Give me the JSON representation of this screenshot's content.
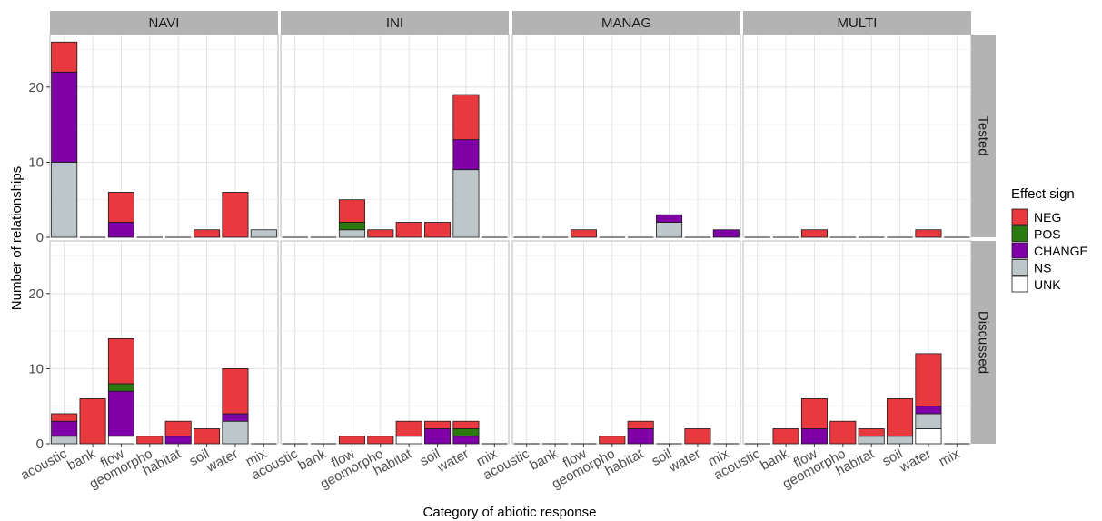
{
  "chart_data": {
    "type": "bar",
    "stacked": true,
    "facet_cols": [
      "NAVI",
      "INI",
      "MANAG",
      "MULTI"
    ],
    "facet_rows": [
      "Tested",
      "Discussed"
    ],
    "categories": [
      "acoustic",
      "bank",
      "flow",
      "geomorpho",
      "habitat",
      "soil",
      "water",
      "mix"
    ],
    "xlabel": "Category of abiotic response",
    "ylabel": "Number of relationships",
    "ylim": [
      0,
      27
    ],
    "yticks": [
      0,
      10,
      20
    ],
    "grid": true,
    "legend": {
      "title": "Effect sign",
      "position": "right",
      "items": [
        {
          "label": "NEG",
          "color": "#e8393e"
        },
        {
          "label": "POS",
          "color": "#2a7a10"
        },
        {
          "label": "CHANGE",
          "color": "#8000a8"
        },
        {
          "label": "NS",
          "color": "#bdc6c9"
        },
        {
          "label": "UNK",
          "color": "#ffffff"
        }
      ]
    },
    "stack_order": [
      "UNK",
      "NS",
      "CHANGE",
      "POS",
      "NEG"
    ],
    "panels": [
      {
        "row": "Tested",
        "col": "NAVI",
        "bars": [
          {
            "category": "acoustic",
            "NS": 10,
            "CHANGE": 12,
            "NEG": 4
          },
          {
            "category": "bank"
          },
          {
            "category": "flow",
            "CHANGE": 2,
            "NEG": 4
          },
          {
            "category": "geomorpho"
          },
          {
            "category": "habitat"
          },
          {
            "category": "soil",
            "NEG": 1
          },
          {
            "category": "water",
            "NEG": 6
          },
          {
            "category": "mix",
            "NS": 1
          }
        ]
      },
      {
        "row": "Tested",
        "col": "INI",
        "bars": [
          {
            "category": "acoustic"
          },
          {
            "category": "bank"
          },
          {
            "category": "flow",
            "NS": 1,
            "POS": 1,
            "NEG": 3
          },
          {
            "category": "geomorpho",
            "NEG": 1
          },
          {
            "category": "habitat",
            "NEG": 2
          },
          {
            "category": "soil",
            "NEG": 2
          },
          {
            "category": "water",
            "NS": 9,
            "CHANGE": 4,
            "NEG": 6
          },
          {
            "category": "mix"
          }
        ]
      },
      {
        "row": "Tested",
        "col": "MANAG",
        "bars": [
          {
            "category": "acoustic"
          },
          {
            "category": "bank"
          },
          {
            "category": "flow",
            "NEG": 1
          },
          {
            "category": "geomorpho"
          },
          {
            "category": "habitat"
          },
          {
            "category": "soil",
            "NS": 2,
            "CHANGE": 1
          },
          {
            "category": "water"
          },
          {
            "category": "mix",
            "CHANGE": 1
          }
        ]
      },
      {
        "row": "Tested",
        "col": "MULTI",
        "bars": [
          {
            "category": "acoustic"
          },
          {
            "category": "bank"
          },
          {
            "category": "flow",
            "NEG": 1
          },
          {
            "category": "geomorpho"
          },
          {
            "category": "habitat"
          },
          {
            "category": "soil"
          },
          {
            "category": "water",
            "NEG": 1
          },
          {
            "category": "mix"
          }
        ]
      },
      {
        "row": "Discussed",
        "col": "NAVI",
        "bars": [
          {
            "category": "acoustic",
            "NS": 1,
            "CHANGE": 2,
            "NEG": 1
          },
          {
            "category": "bank",
            "NEG": 6
          },
          {
            "category": "flow",
            "UNK": 1,
            "CHANGE": 6,
            "POS": 1,
            "NEG": 6
          },
          {
            "category": "geomorpho",
            "NEG": 1
          },
          {
            "category": "habitat",
            "CHANGE": 1,
            "NEG": 2
          },
          {
            "category": "soil",
            "NEG": 2
          },
          {
            "category": "water",
            "NS": 3,
            "CHANGE": 1,
            "NEG": 6
          },
          {
            "category": "mix"
          }
        ]
      },
      {
        "row": "Discussed",
        "col": "INI",
        "bars": [
          {
            "category": "acoustic"
          },
          {
            "category": "bank"
          },
          {
            "category": "flow",
            "NEG": 1
          },
          {
            "category": "geomorpho",
            "NEG": 1
          },
          {
            "category": "habitat",
            "UNK": 1,
            "NEG": 2
          },
          {
            "category": "soil",
            "CHANGE": 2,
            "NEG": 1
          },
          {
            "category": "water",
            "POS": 1,
            "CHANGE": 1,
            "NEG": 1
          },
          {
            "category": "mix"
          }
        ]
      },
      {
        "row": "Discussed",
        "col": "MANAG",
        "bars": [
          {
            "category": "acoustic"
          },
          {
            "category": "bank"
          },
          {
            "category": "flow"
          },
          {
            "category": "geomorpho",
            "NEG": 1
          },
          {
            "category": "habitat",
            "CHANGE": 2,
            "NEG": 1
          },
          {
            "category": "soil"
          },
          {
            "category": "water",
            "NEG": 2
          },
          {
            "category": "mix"
          }
        ]
      },
      {
        "row": "Discussed",
        "col": "MULTI",
        "bars": [
          {
            "category": "acoustic"
          },
          {
            "category": "bank",
            "NEG": 2
          },
          {
            "category": "flow",
            "CHANGE": 2,
            "NEG": 4
          },
          {
            "category": "geomorpho",
            "NEG": 3
          },
          {
            "category": "habitat",
            "NS": 1,
            "NEG": 1
          },
          {
            "category": "soil",
            "NS": 1,
            "NEG": 5
          },
          {
            "category": "water",
            "UNK": 2,
            "NS": 2,
            "CHANGE": 1,
            "NEG": 7
          },
          {
            "category": "mix"
          }
        ]
      }
    ]
  }
}
